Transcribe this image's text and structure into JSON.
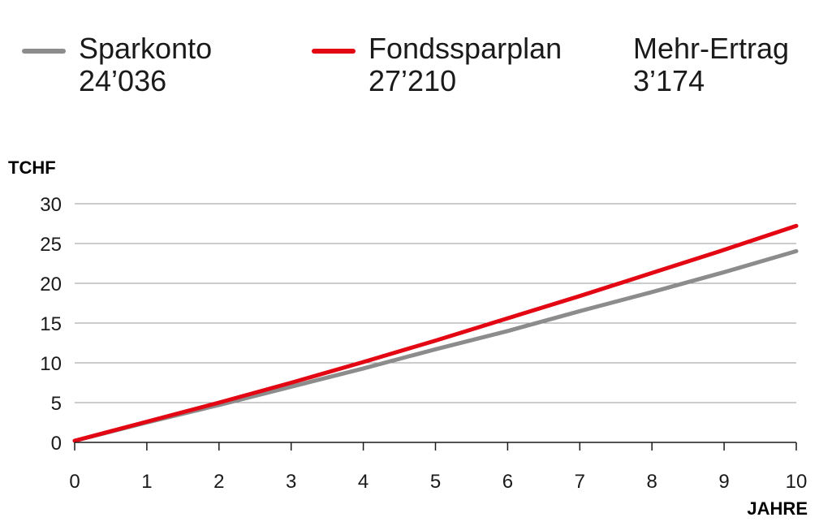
{
  "legend": [
    {
      "name": "Sparkonto",
      "value": "24’036",
      "color": "#8c8c8c",
      "line": true
    },
    {
      "name": "Fondssparplan",
      "value": "27’210",
      "color": "#e30613",
      "line": true
    },
    {
      "name": "Mehr-Ertrag",
      "value": "3’174",
      "color": "#1a1a1a",
      "line": false
    }
  ],
  "chart_data": {
    "type": "line",
    "ylabel": "TCHF",
    "xlabel": "JAHRE",
    "xlim": [
      0,
      10
    ],
    "ylim": [
      0,
      30
    ],
    "xticks": [
      "0",
      "1",
      "2",
      "3",
      "4",
      "5",
      "6",
      "7",
      "8",
      "9",
      "10"
    ],
    "yticks": [
      "0",
      "5",
      "10",
      "15",
      "20",
      "25",
      "30"
    ],
    "grid": "horizontal",
    "legend_position": "top",
    "x": [
      0,
      1,
      2,
      3,
      4,
      5,
      6,
      7,
      8,
      9,
      10
    ],
    "series": [
      {
        "name": "Sparkonto",
        "color": "#8c8c8c",
        "values": [
          0.2,
          2.5,
          4.7,
          7.0,
          9.3,
          11.7,
          14.0,
          16.5,
          18.9,
          21.4,
          24.036
        ]
      },
      {
        "name": "Fondssparplan",
        "color": "#e30613",
        "values": [
          0.2,
          2.6,
          5.0,
          7.5,
          10.1,
          12.8,
          15.6,
          18.4,
          21.3,
          24.2,
          27.21
        ]
      }
    ]
  }
}
